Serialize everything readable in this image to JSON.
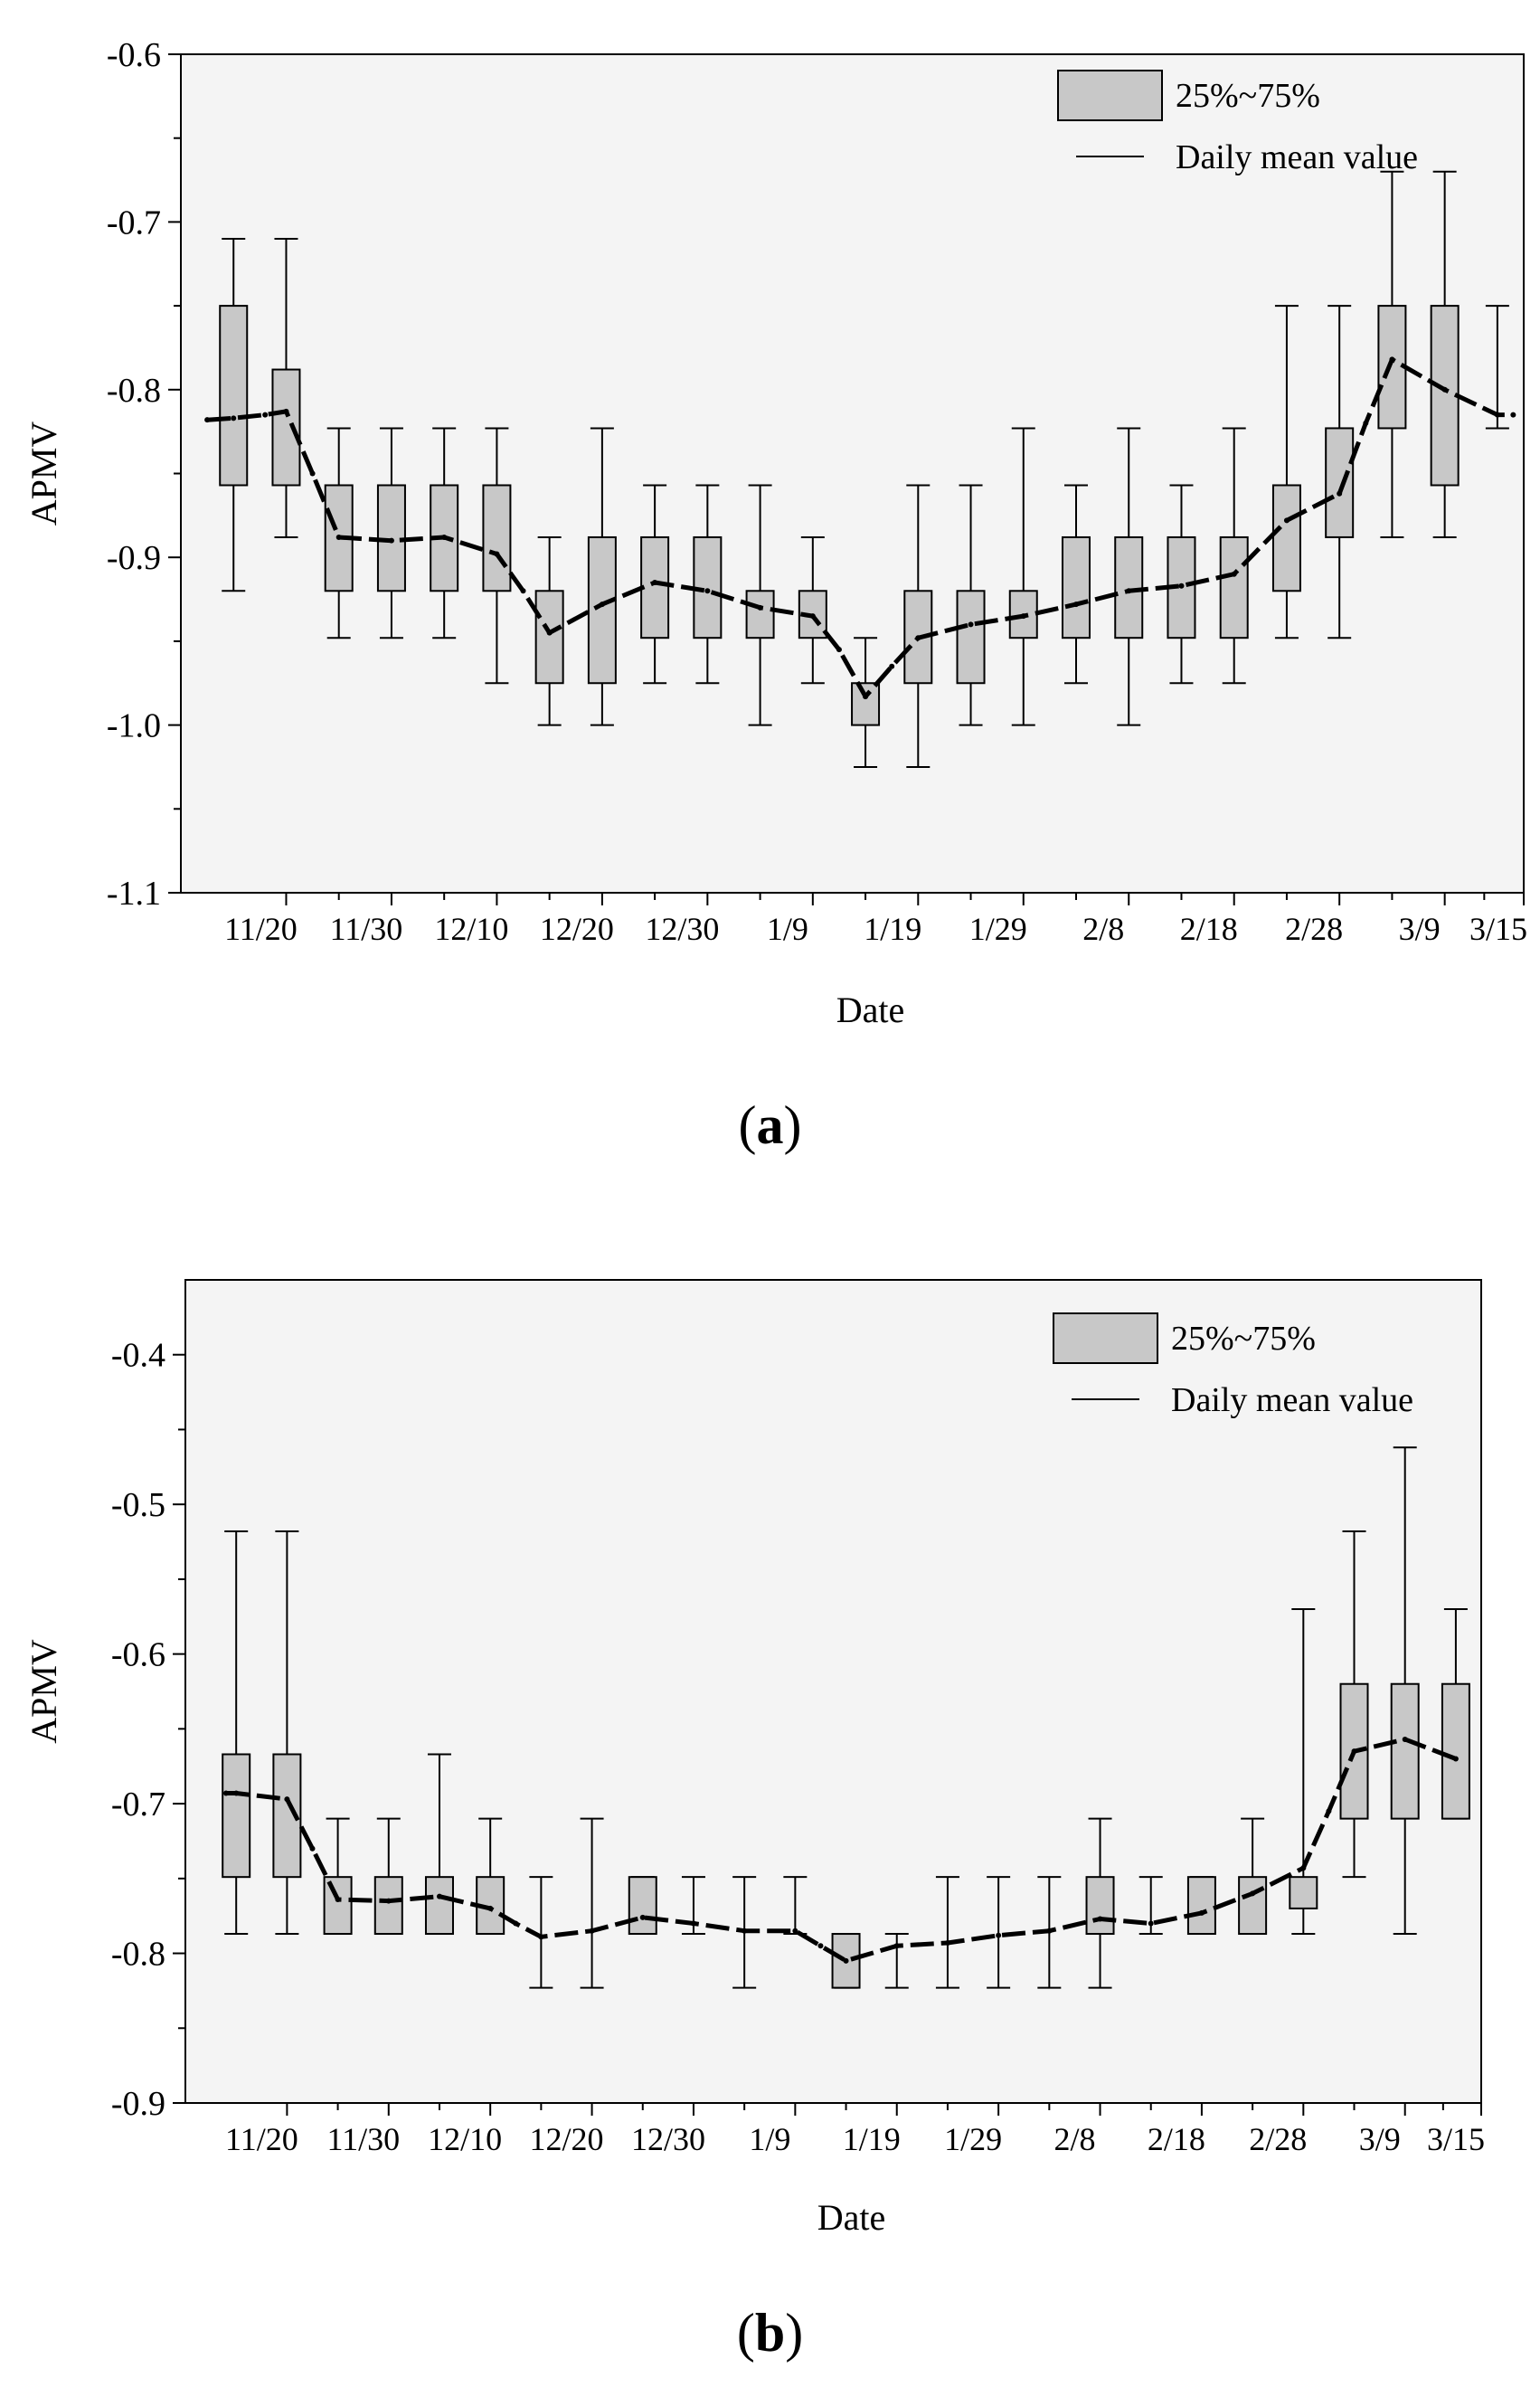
{
  "chart_data": [
    {
      "type": "box",
      "panel": "a",
      "caption_letter": "a",
      "xlabel": "Date",
      "ylabel": "APMV",
      "ylim": [
        -1.1,
        -0.6
      ],
      "yticks": [
        "-0.6",
        "-0.7",
        "-0.8",
        "-0.9",
        "-1.0",
        "-1.1"
      ],
      "ytick_values": [
        -0.6,
        -0.7,
        -0.8,
        -0.9,
        -1.0,
        -1.1
      ],
      "xlim": [
        0,
        25.5
      ],
      "xticks": [
        "11/20",
        "11/30",
        "12/10",
        "12/20",
        "12/30",
        "1/9",
        "1/19",
        "1/29",
        "2/8",
        "2/18",
        "2/28",
        "3/9",
        "3/15"
      ],
      "xtick_positions": [
        2,
        4,
        6,
        8,
        10,
        12,
        14,
        16,
        18,
        20,
        22,
        24,
        25.5
      ],
      "legend": {
        "box_label": "25%~75%",
        "line_label": "Daily mean value",
        "position": "top-right"
      },
      "boxes": [
        {
          "x": 1,
          "whisker_low": -0.92,
          "q1": -0.857,
          "q3": -0.75,
          "whisker_high": -0.71
        },
        {
          "x": 2,
          "whisker_low": -0.888,
          "q1": -0.857,
          "q3": -0.788,
          "whisker_high": -0.71
        },
        {
          "x": 3,
          "whisker_low": -0.948,
          "q1": -0.92,
          "q3": -0.857,
          "whisker_high": -0.823
        },
        {
          "x": 4,
          "whisker_low": -0.948,
          "q1": -0.92,
          "q3": -0.857,
          "whisker_high": -0.823
        },
        {
          "x": 5,
          "whisker_low": -0.948,
          "q1": -0.92,
          "q3": -0.857,
          "whisker_high": -0.823
        },
        {
          "x": 6,
          "whisker_low": -0.975,
          "q1": -0.92,
          "q3": -0.857,
          "whisker_high": -0.823
        },
        {
          "x": 7,
          "whisker_low": -1.0,
          "q1": -0.975,
          "q3": -0.92,
          "whisker_high": -0.888
        },
        {
          "x": 8,
          "whisker_low": -1.0,
          "q1": -0.975,
          "q3": -0.888,
          "whisker_high": -0.823
        },
        {
          "x": 9,
          "whisker_low": -0.975,
          "q1": -0.948,
          "q3": -0.888,
          "whisker_high": -0.857
        },
        {
          "x": 10,
          "whisker_low": -0.975,
          "q1": -0.948,
          "q3": -0.888,
          "whisker_high": -0.857
        },
        {
          "x": 11,
          "whisker_low": -1.0,
          "q1": -0.948,
          "q3": -0.92,
          "whisker_high": -0.857
        },
        {
          "x": 12,
          "whisker_low": -0.975,
          "q1": -0.948,
          "q3": -0.92,
          "whisker_high": -0.888
        },
        {
          "x": 13,
          "whisker_low": -1.025,
          "q1": -1.0,
          "q3": -0.975,
          "whisker_high": -0.948
        },
        {
          "x": 14,
          "whisker_low": -1.025,
          "q1": -0.975,
          "q3": -0.92,
          "whisker_high": -0.857
        },
        {
          "x": 15,
          "whisker_low": -1.0,
          "q1": -0.975,
          "q3": -0.92,
          "whisker_high": -0.857
        },
        {
          "x": 16,
          "whisker_low": -1.0,
          "q1": -0.948,
          "q3": -0.92,
          "whisker_high": -0.823
        },
        {
          "x": 17,
          "whisker_low": -0.975,
          "q1": -0.948,
          "q3": -0.888,
          "whisker_high": -0.857
        },
        {
          "x": 18,
          "whisker_low": -1.0,
          "q1": -0.948,
          "q3": -0.888,
          "whisker_high": -0.823
        },
        {
          "x": 19,
          "whisker_low": -0.975,
          "q1": -0.948,
          "q3": -0.888,
          "whisker_high": -0.857
        },
        {
          "x": 20,
          "whisker_low": -0.975,
          "q1": -0.948,
          "q3": -0.888,
          "whisker_high": -0.823
        },
        {
          "x": 21,
          "whisker_low": -0.948,
          "q1": -0.92,
          "q3": -0.857,
          "whisker_high": -0.75
        },
        {
          "x": 22,
          "whisker_low": -0.948,
          "q1": -0.888,
          "q3": -0.823,
          "whisker_high": -0.75
        },
        {
          "x": 23,
          "whisker_low": -0.888,
          "q1": -0.823,
          "q3": -0.75,
          "whisker_high": -0.67
        },
        {
          "x": 24,
          "whisker_low": -0.888,
          "q1": -0.857,
          "q3": -0.75,
          "whisker_high": -0.67
        },
        {
          "x": 25,
          "whisker_low": -0.823,
          "q1": -0.823,
          "q3": -0.75,
          "whisker_high": -0.75,
          "no_box": true
        }
      ],
      "mean_line": [
        {
          "x": 0.5,
          "y": -0.818
        },
        {
          "x": 1,
          "y": -0.817
        },
        {
          "x": 1.6,
          "y": -0.815
        },
        {
          "x": 2,
          "y": -0.813
        },
        {
          "x": 2.5,
          "y": -0.85
        },
        {
          "x": 3,
          "y": -0.888
        },
        {
          "x": 4,
          "y": -0.89
        },
        {
          "x": 5,
          "y": -0.888
        },
        {
          "x": 6,
          "y": -0.898
        },
        {
          "x": 6.5,
          "y": -0.92
        },
        {
          "x": 7,
          "y": -0.945
        },
        {
          "x": 8,
          "y": -0.928
        },
        {
          "x": 9,
          "y": -0.915
        },
        {
          "x": 10,
          "y": -0.92
        },
        {
          "x": 11,
          "y": -0.93
        },
        {
          "x": 12,
          "y": -0.935
        },
        {
          "x": 12.5,
          "y": -0.955
        },
        {
          "x": 13,
          "y": -0.983
        },
        {
          "x": 13.5,
          "y": -0.965
        },
        {
          "x": 14,
          "y": -0.948
        },
        {
          "x": 15,
          "y": -0.94
        },
        {
          "x": 16,
          "y": -0.935
        },
        {
          "x": 17,
          "y": -0.928
        },
        {
          "x": 18,
          "y": -0.92
        },
        {
          "x": 19,
          "y": -0.917
        },
        {
          "x": 20,
          "y": -0.91
        },
        {
          "x": 21,
          "y": -0.878
        },
        {
          "x": 22,
          "y": -0.862
        },
        {
          "x": 22.5,
          "y": -0.82
        },
        {
          "x": 23,
          "y": -0.782
        },
        {
          "x": 24,
          "y": -0.8
        },
        {
          "x": 25,
          "y": -0.815
        },
        {
          "x": 25.3,
          "y": -0.815
        }
      ]
    },
    {
      "type": "box",
      "panel": "b",
      "caption_letter": "b",
      "xlabel": "Date",
      "ylabel": "APMV",
      "ylim": [
        -0.9,
        -0.35
      ],
      "yticks": [
        "-0.4",
        "-0.5",
        "-0.6",
        "-0.7",
        "-0.8",
        "-0.9"
      ],
      "ytick_values": [
        -0.4,
        -0.5,
        -0.6,
        -0.7,
        -0.8,
        -0.9
      ],
      "xlim": [
        0,
        25.5
      ],
      "xticks": [
        "11/20",
        "11/30",
        "12/10",
        "12/20",
        "12/30",
        "1/9",
        "1/19",
        "1/29",
        "2/8",
        "2/18",
        "2/28",
        "3/9",
        "3/15"
      ],
      "xtick_positions": [
        2,
        4,
        6,
        8,
        10,
        12,
        14,
        16,
        18,
        20,
        22,
        24,
        25.5
      ],
      "legend": {
        "box_label": "25%~75%",
        "line_label": "Daily mean value",
        "position": "top-right"
      },
      "boxes": [
        {
          "x": 1,
          "whisker_low": -0.787,
          "q1": -0.749,
          "q3": -0.667,
          "whisker_high": -0.518
        },
        {
          "x": 2,
          "whisker_low": -0.787,
          "q1": -0.749,
          "q3": -0.667,
          "whisker_high": -0.518
        },
        {
          "x": 3,
          "whisker_low": -0.787,
          "q1": -0.787,
          "q3": -0.749,
          "whisker_high": -0.71
        },
        {
          "x": 4,
          "whisker_low": -0.787,
          "q1": -0.787,
          "q3": -0.749,
          "whisker_high": -0.71
        },
        {
          "x": 5,
          "whisker_low": -0.787,
          "q1": -0.787,
          "q3": -0.749,
          "whisker_high": -0.667
        },
        {
          "x": 6,
          "whisker_low": -0.787,
          "q1": -0.787,
          "q3": -0.749,
          "whisker_high": -0.71
        },
        {
          "x": 7,
          "whisker_low": -0.823,
          "q1": -0.787,
          "q3": -0.787,
          "whisker_high": -0.749,
          "no_box": true
        },
        {
          "x": 8,
          "whisker_low": -0.823,
          "q1": -0.787,
          "q3": -0.787,
          "whisker_high": -0.71,
          "no_box": true
        },
        {
          "x": 9,
          "whisker_low": -0.787,
          "q1": -0.787,
          "q3": -0.749,
          "whisker_high": -0.749
        },
        {
          "x": 10,
          "whisker_low": -0.787,
          "q1": -0.787,
          "q3": -0.787,
          "whisker_high": -0.749,
          "no_box": true
        },
        {
          "x": 11,
          "whisker_low": -0.823,
          "q1": -0.787,
          "q3": -0.787,
          "whisker_high": -0.749,
          "no_box": true
        },
        {
          "x": 12,
          "whisker_low": -0.787,
          "q1": -0.787,
          "q3": -0.787,
          "whisker_high": -0.749,
          "no_box": true
        },
        {
          "x": 13,
          "whisker_low": -0.823,
          "q1": -0.823,
          "q3": -0.787,
          "whisker_high": -0.787
        },
        {
          "x": 14,
          "whisker_low": -0.823,
          "q1": -0.787,
          "q3": -0.787,
          "whisker_high": -0.787,
          "no_box": true
        },
        {
          "x": 15,
          "whisker_low": -0.823,
          "q1": -0.787,
          "q3": -0.787,
          "whisker_high": -0.749,
          "no_box": true
        },
        {
          "x": 16,
          "whisker_low": -0.823,
          "q1": -0.787,
          "q3": -0.787,
          "whisker_high": -0.749,
          "no_box": true
        },
        {
          "x": 17,
          "whisker_low": -0.823,
          "q1": -0.787,
          "q3": -0.787,
          "whisker_high": -0.749,
          "no_box": true
        },
        {
          "x": 18,
          "whisker_low": -0.823,
          "q1": -0.787,
          "q3": -0.749,
          "whisker_high": -0.71
        },
        {
          "x": 19,
          "whisker_low": -0.787,
          "q1": -0.787,
          "q3": -0.787,
          "whisker_high": -0.749,
          "no_box": true
        },
        {
          "x": 20,
          "whisker_low": -0.787,
          "q1": -0.787,
          "q3": -0.749,
          "whisker_high": -0.749
        },
        {
          "x": 21,
          "whisker_low": -0.787,
          "q1": -0.787,
          "q3": -0.749,
          "whisker_high": -0.71
        },
        {
          "x": 22,
          "whisker_low": -0.787,
          "q1": -0.77,
          "q3": -0.749,
          "whisker_high": -0.57
        },
        {
          "x": 23,
          "whisker_low": -0.749,
          "q1": -0.71,
          "q3": -0.62,
          "whisker_high": -0.518
        },
        {
          "x": 24,
          "whisker_low": -0.787,
          "q1": -0.71,
          "q3": -0.62,
          "whisker_high": -0.462
        },
        {
          "x": 25,
          "whisker_low": -0.71,
          "q1": -0.71,
          "q3": -0.62,
          "whisker_high": -0.57
        }
      ],
      "mean_line": [
        {
          "x": 0.8,
          "y": -0.693
        },
        {
          "x": 1,
          "y": -0.693
        },
        {
          "x": 2,
          "y": -0.697
        },
        {
          "x": 2.5,
          "y": -0.73
        },
        {
          "x": 3,
          "y": -0.764
        },
        {
          "x": 4,
          "y": -0.765
        },
        {
          "x": 5,
          "y": -0.762
        },
        {
          "x": 6,
          "y": -0.77
        },
        {
          "x": 6.5,
          "y": -0.78
        },
        {
          "x": 7,
          "y": -0.789
        },
        {
          "x": 8,
          "y": -0.785
        },
        {
          "x": 9,
          "y": -0.776
        },
        {
          "x": 10,
          "y": -0.78
        },
        {
          "x": 11,
          "y": -0.785
        },
        {
          "x": 12,
          "y": -0.785
        },
        {
          "x": 12.5,
          "y": -0.795
        },
        {
          "x": 13,
          "y": -0.805
        },
        {
          "x": 14,
          "y": -0.795
        },
        {
          "x": 15,
          "y": -0.793
        },
        {
          "x": 16,
          "y": -0.788
        },
        {
          "x": 17,
          "y": -0.785
        },
        {
          "x": 18,
          "y": -0.777
        },
        {
          "x": 19,
          "y": -0.78
        },
        {
          "x": 20,
          "y": -0.773
        },
        {
          "x": 21,
          "y": -0.76
        },
        {
          "x": 22,
          "y": -0.743
        },
        {
          "x": 22.5,
          "y": -0.705
        },
        {
          "x": 23,
          "y": -0.665
        },
        {
          "x": 24,
          "y": -0.657
        },
        {
          "x": 25,
          "y": -0.67
        }
      ]
    }
  ],
  "colors": {
    "box_fill": "#c8c8c8",
    "stroke": "#000000",
    "plot_bg": "#f4f4f4"
  }
}
